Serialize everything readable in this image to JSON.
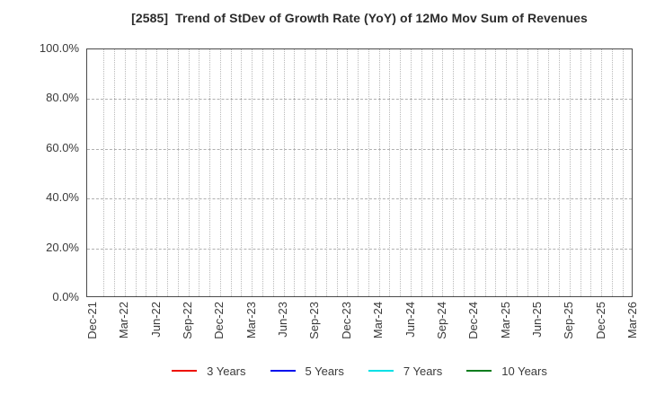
{
  "chart_data": {
    "type": "line",
    "title": "[2585]  Trend of StDev of Growth Rate (YoY) of 12Mo Mov Sum of Revenues",
    "x_tick_labels": [
      "Dec-21",
      "Mar-22",
      "Jun-22",
      "Sep-22",
      "Dec-22",
      "Mar-23",
      "Jun-23",
      "Sep-23",
      "Dec-23",
      "Mar-24",
      "Jun-24",
      "Sep-24",
      "Dec-24",
      "Mar-25",
      "Jun-25",
      "Sep-25",
      "Dec-25",
      "Mar-26"
    ],
    "x_minor_intervals_per_tick": 3,
    "ylim": [
      0,
      100
    ],
    "y_ticks": [
      {
        "value": 0,
        "label": "0.0%"
      },
      {
        "value": 20,
        "label": "20.0%"
      },
      {
        "value": 40,
        "label": "40.0%"
      },
      {
        "value": 60,
        "label": "60.0%"
      },
      {
        "value": 80,
        "label": "80.0%"
      },
      {
        "value": 100,
        "label": "100.0%"
      }
    ],
    "grid": {
      "shown": true,
      "horizontal_style": "dashed",
      "vertical_style": "dotted"
    },
    "legend_position": "bottom",
    "series": [
      {
        "name": "3 Years",
        "color": "#ee1100",
        "values": []
      },
      {
        "name": "5 Years",
        "color": "#0011ee",
        "values": []
      },
      {
        "name": "7 Years",
        "color": "#00e0e6",
        "values": []
      },
      {
        "name": "10 Years",
        "color": "#0b7d1e",
        "values": []
      }
    ]
  }
}
